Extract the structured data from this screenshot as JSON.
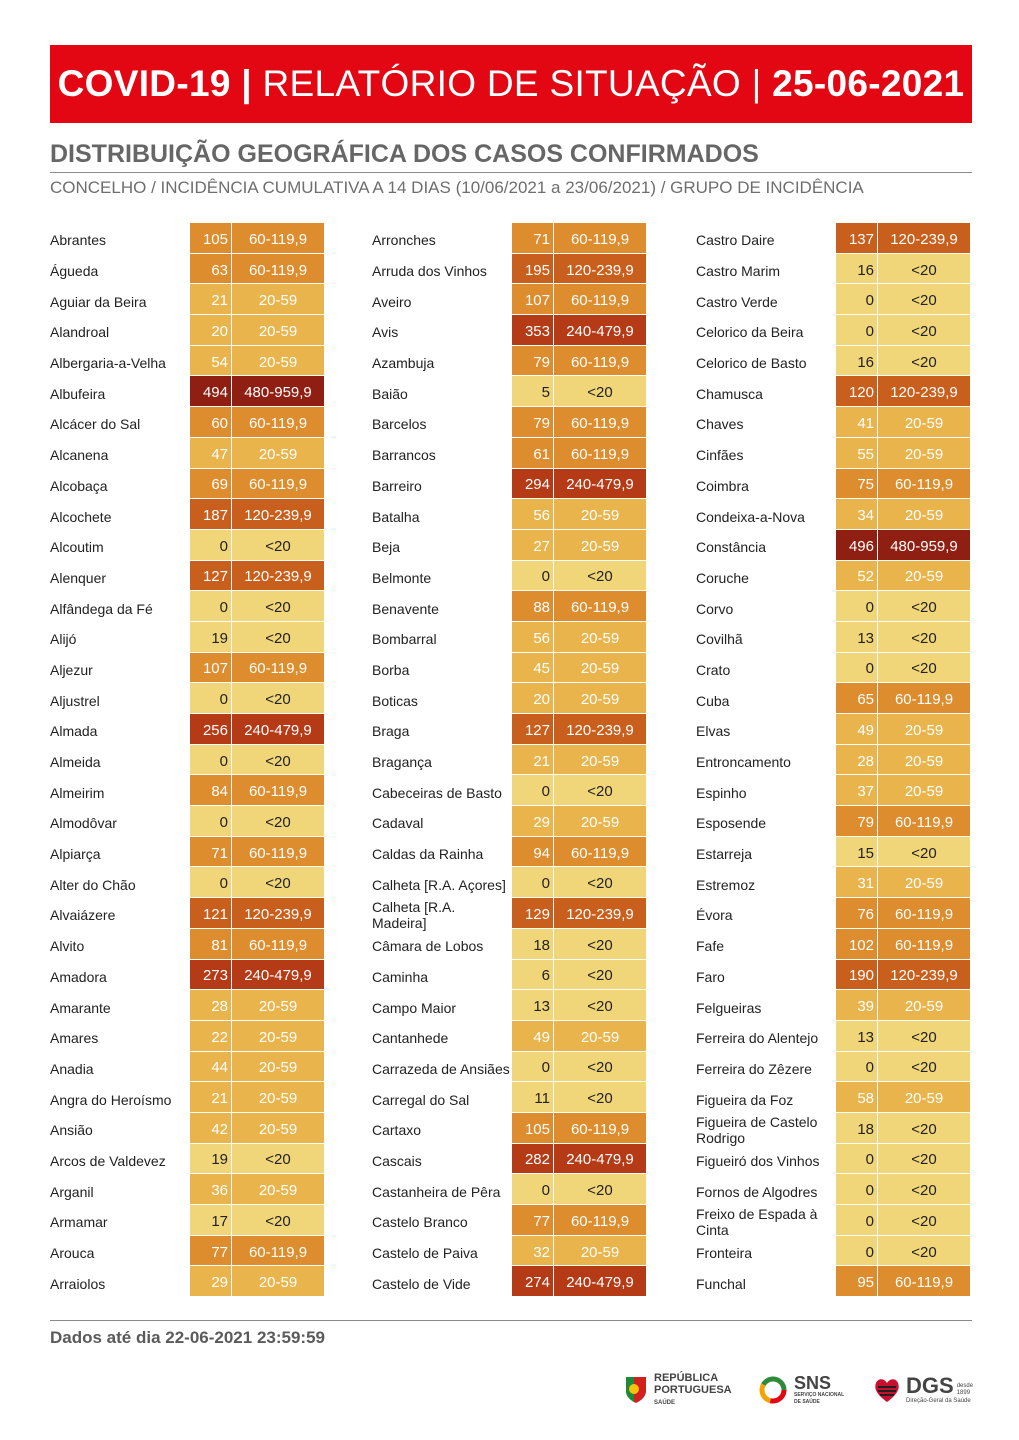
{
  "banner": {
    "part1": "COVID-19 |",
    "part2": "RELATÓRIO DE SITUAÇÃO |",
    "part3": "25-06-2021"
  },
  "heading": "DISTRIBUIÇÃO GEOGRÁFICA DOS CASOS CONFIRMADOS",
  "subheading": "CONCELHO / INCIDÊNCIA CUMULATIVA A 14 DIAS (10/06/2021 a 23/06/2021) / GRUPO DE INCIDÊNCIA",
  "colors": {
    "lt20": "#f1d679",
    "20-59": "#e9b44c",
    "60-119": "#dd8c2e",
    "120-239": "#c95f1c",
    "240-479": "#b53a16",
    "480-959": "#8e1f12",
    "banner": "#e30613"
  },
  "columns": [
    [
      {
        "name": "Abrantes",
        "value": "105",
        "group": "60-119,9"
      },
      {
        "name": "Águeda",
        "value": "63",
        "group": "60-119,9"
      },
      {
        "name": "Aguiar da Beira",
        "value": "21",
        "group": "20-59"
      },
      {
        "name": "Alandroal",
        "value": "20",
        "group": "20-59"
      },
      {
        "name": "Albergaria-a-Velha",
        "value": "54",
        "group": "20-59"
      },
      {
        "name": "Albufeira",
        "value": "494",
        "group": "480-959,9"
      },
      {
        "name": "Alcácer do Sal",
        "value": "60",
        "group": "60-119,9"
      },
      {
        "name": "Alcanena",
        "value": "47",
        "group": "20-59"
      },
      {
        "name": "Alcobaça",
        "value": "69",
        "group": "60-119,9"
      },
      {
        "name": "Alcochete",
        "value": "187",
        "group": "120-239,9"
      },
      {
        "name": "Alcoutim",
        "value": "0",
        "group": "<20"
      },
      {
        "name": "Alenquer",
        "value": "127",
        "group": "120-239,9"
      },
      {
        "name": "Alfândega da Fé",
        "value": "0",
        "group": "<20"
      },
      {
        "name": "Alijó",
        "value": "19",
        "group": "<20"
      },
      {
        "name": "Aljezur",
        "value": "107",
        "group": "60-119,9"
      },
      {
        "name": "Aljustrel",
        "value": "0",
        "group": "<20"
      },
      {
        "name": "Almada",
        "value": "256",
        "group": "240-479,9"
      },
      {
        "name": "Almeida",
        "value": "0",
        "group": "<20"
      },
      {
        "name": "Almeirim",
        "value": "84",
        "group": "60-119,9"
      },
      {
        "name": "Almodôvar",
        "value": "0",
        "group": "<20"
      },
      {
        "name": "Alpiarça",
        "value": "71",
        "group": "60-119,9"
      },
      {
        "name": "Alter do Chão",
        "value": "0",
        "group": "<20"
      },
      {
        "name": "Alvaiázere",
        "value": "121",
        "group": "120-239,9"
      },
      {
        "name": "Alvito",
        "value": "81",
        "group": "60-119,9"
      },
      {
        "name": "Amadora",
        "value": "273",
        "group": "240-479,9"
      },
      {
        "name": "Amarante",
        "value": "28",
        "group": "20-59"
      },
      {
        "name": "Amares",
        "value": "22",
        "group": "20-59"
      },
      {
        "name": "Anadia",
        "value": "44",
        "group": "20-59"
      },
      {
        "name": "Angra do Heroísmo",
        "value": "21",
        "group": "20-59"
      },
      {
        "name": "Ansião",
        "value": "42",
        "group": "20-59"
      },
      {
        "name": "Arcos de Valdevez",
        "value": "19",
        "group": "<20"
      },
      {
        "name": "Arganil",
        "value": "36",
        "group": "20-59"
      },
      {
        "name": "Armamar",
        "value": "17",
        "group": "<20"
      },
      {
        "name": "Arouca",
        "value": "77",
        "group": "60-119,9"
      },
      {
        "name": "Arraiolos",
        "value": "29",
        "group": "20-59"
      }
    ],
    [
      {
        "name": "Arronches",
        "value": "71",
        "group": "60-119,9"
      },
      {
        "name": "Arruda dos Vinhos",
        "value": "195",
        "group": "120-239,9"
      },
      {
        "name": "Aveiro",
        "value": "107",
        "group": "60-119,9"
      },
      {
        "name": "Avis",
        "value": "353",
        "group": "240-479,9"
      },
      {
        "name": "Azambuja",
        "value": "79",
        "group": "60-119,9"
      },
      {
        "name": "Baião",
        "value": "5",
        "group": "<20"
      },
      {
        "name": "Barcelos",
        "value": "79",
        "group": "60-119,9"
      },
      {
        "name": "Barrancos",
        "value": "61",
        "group": "60-119,9"
      },
      {
        "name": "Barreiro",
        "value": "294",
        "group": "240-479,9"
      },
      {
        "name": "Batalha",
        "value": "56",
        "group": "20-59"
      },
      {
        "name": "Beja",
        "value": "27",
        "group": "20-59"
      },
      {
        "name": "Belmonte",
        "value": "0",
        "group": "<20"
      },
      {
        "name": "Benavente",
        "value": "88",
        "group": "60-119,9"
      },
      {
        "name": "Bombarral",
        "value": "56",
        "group": "20-59"
      },
      {
        "name": "Borba",
        "value": "45",
        "group": "20-59"
      },
      {
        "name": "Boticas",
        "value": "20",
        "group": "20-59"
      },
      {
        "name": "Braga",
        "value": "127",
        "group": "120-239,9"
      },
      {
        "name": "Bragança",
        "value": "21",
        "group": "20-59"
      },
      {
        "name": "Cabeceiras de Basto",
        "value": "0",
        "group": "<20"
      },
      {
        "name": "Cadaval",
        "value": "29",
        "group": "20-59"
      },
      {
        "name": "Caldas da Rainha",
        "value": "94",
        "group": "60-119,9"
      },
      {
        "name": "Calheta [R.A. Açores]",
        "value": "0",
        "group": "<20"
      },
      {
        "name": "Calheta [R.A. Madeira]",
        "value": "129",
        "group": "120-239,9"
      },
      {
        "name": "Câmara de Lobos",
        "value": "18",
        "group": "<20"
      },
      {
        "name": "Caminha",
        "value": "6",
        "group": "<20"
      },
      {
        "name": "Campo Maior",
        "value": "13",
        "group": "<20"
      },
      {
        "name": "Cantanhede",
        "value": "49",
        "group": "20-59"
      },
      {
        "name": "Carrazeda de Ansiães",
        "value": "0",
        "group": "<20"
      },
      {
        "name": "Carregal do Sal",
        "value": "11",
        "group": "<20"
      },
      {
        "name": "Cartaxo",
        "value": "105",
        "group": "60-119,9"
      },
      {
        "name": "Cascais",
        "value": "282",
        "group": "240-479,9"
      },
      {
        "name": "Castanheira de Pêra",
        "value": "0",
        "group": "<20"
      },
      {
        "name": "Castelo Branco",
        "value": "77",
        "group": "60-119,9"
      },
      {
        "name": "Castelo de Paiva",
        "value": "32",
        "group": "20-59"
      },
      {
        "name": "Castelo de Vide",
        "value": "274",
        "group": "240-479,9"
      }
    ],
    [
      {
        "name": "Castro Daire",
        "value": "137",
        "group": "120-239,9"
      },
      {
        "name": "Castro Marim",
        "value": "16",
        "group": "<20"
      },
      {
        "name": "Castro Verde",
        "value": "0",
        "group": "<20"
      },
      {
        "name": "Celorico da Beira",
        "value": "0",
        "group": "<20"
      },
      {
        "name": "Celorico de Basto",
        "value": "16",
        "group": "<20"
      },
      {
        "name": "Chamusca",
        "value": "120",
        "group": "120-239,9"
      },
      {
        "name": "Chaves",
        "value": "41",
        "group": "20-59"
      },
      {
        "name": "Cinfães",
        "value": "55",
        "group": "20-59"
      },
      {
        "name": "Coimbra",
        "value": "75",
        "group": "60-119,9"
      },
      {
        "name": "Condeixa-a-Nova",
        "value": "34",
        "group": "20-59"
      },
      {
        "name": "Constância",
        "value": "496",
        "group": "480-959,9"
      },
      {
        "name": "Coruche",
        "value": "52",
        "group": "20-59"
      },
      {
        "name": "Corvo",
        "value": "0",
        "group": "<20"
      },
      {
        "name": "Covilhã",
        "value": "13",
        "group": "<20"
      },
      {
        "name": "Crato",
        "value": "0",
        "group": "<20"
      },
      {
        "name": "Cuba",
        "value": "65",
        "group": "60-119,9"
      },
      {
        "name": "Elvas",
        "value": "49",
        "group": "20-59"
      },
      {
        "name": "Entroncamento",
        "value": "28",
        "group": "20-59"
      },
      {
        "name": "Espinho",
        "value": "37",
        "group": "20-59"
      },
      {
        "name": "Esposende",
        "value": "79",
        "group": "60-119,9"
      },
      {
        "name": "Estarreja",
        "value": "15",
        "group": "<20"
      },
      {
        "name": "Estremoz",
        "value": "31",
        "group": "20-59"
      },
      {
        "name": "Évora",
        "value": "76",
        "group": "60-119,9"
      },
      {
        "name": "Fafe",
        "value": "102",
        "group": "60-119,9"
      },
      {
        "name": "Faro",
        "value": "190",
        "group": "120-239,9"
      },
      {
        "name": "Felgueiras",
        "value": "39",
        "group": "20-59"
      },
      {
        "name": "Ferreira do Alentejo",
        "value": "13",
        "group": "<20"
      },
      {
        "name": "Ferreira do Zêzere",
        "value": "0",
        "group": "<20"
      },
      {
        "name": "Figueira da Foz",
        "value": "58",
        "group": "20-59"
      },
      {
        "name": "Figueira de Castelo Rodrigo",
        "value": "18",
        "group": "<20"
      },
      {
        "name": "Figueiró dos Vinhos",
        "value": "0",
        "group": "<20"
      },
      {
        "name": "Fornos de Algodres",
        "value": "0",
        "group": "<20"
      },
      {
        "name": "Freixo de Espada à Cinta",
        "value": "0",
        "group": "<20"
      },
      {
        "name": "Fronteira",
        "value": "0",
        "group": "<20"
      },
      {
        "name": "Funchal",
        "value": "95",
        "group": "60-119,9"
      }
    ]
  ],
  "footer": {
    "text": "Dados até dia 22-06-2021 23:59:59"
  },
  "logos": {
    "republica": {
      "line1": "REPÚBLICA",
      "line2": "PORTUGUESA",
      "line3": "SAÚDE",
      "icon": "flag-shield-icon"
    },
    "sns": {
      "line1": "SNS",
      "line2": "SERVIÇO NACIONAL",
      "line3": "DE SAÚDE",
      "icon": "sns-ring-icon"
    },
    "dgs": {
      "line1": "DGS",
      "line2": "desde",
      "line3": "1899",
      "line4": "Direção-Geral da Saúde",
      "icon": "dgs-heart-icon"
    }
  }
}
